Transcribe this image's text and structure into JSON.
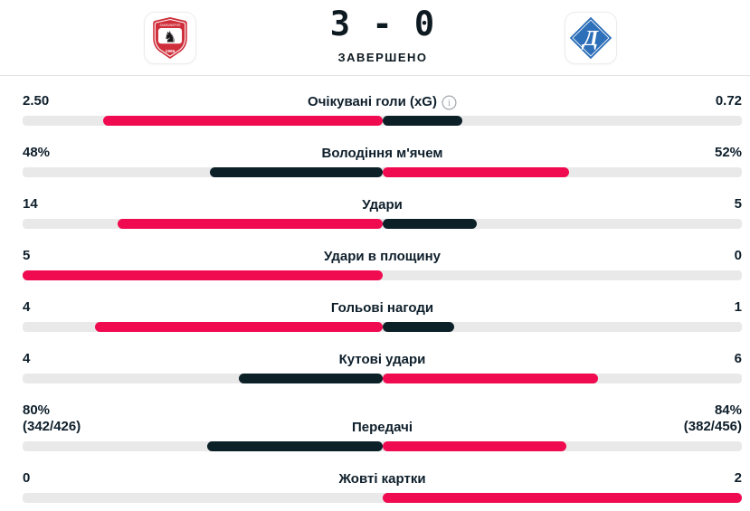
{
  "header": {
    "home_team": {
      "name": "Samsunspor",
      "crest_top_text": "SAMSUNSPOR",
      "crest_bottom_text": "1965"
    },
    "away_team": {
      "name": "Dynamo Kyiv",
      "crest_letter": "Д"
    },
    "score": "3 - 0",
    "status": "ЗАВЕРШЕНО"
  },
  "colors": {
    "accent": "#f00a50",
    "dark": "#0c2028",
    "track": "#e9e9e9"
  },
  "stats": [
    {
      "label": "Очікувані голи (xG)",
      "info": true,
      "home": "2.50",
      "away": "0.72",
      "home_num": 2.5,
      "away_num": 0.72
    },
    {
      "label": "Володіння м'ячем",
      "home": "48%",
      "away": "52%",
      "home_num": 48,
      "away_num": 52
    },
    {
      "label": "Удари",
      "home": "14",
      "away": "5",
      "home_num": 14,
      "away_num": 5
    },
    {
      "label": "Удари в площину",
      "home": "5",
      "away": "0",
      "home_num": 5,
      "away_num": 0
    },
    {
      "label": "Гольові нагоди",
      "home": "4",
      "away": "1",
      "home_num": 4,
      "away_num": 1
    },
    {
      "label": "Кутові удари",
      "home": "4",
      "away": "6",
      "home_num": 4,
      "away_num": 6
    },
    {
      "label": "Передачі",
      "home": "80%",
      "home_sub": "(342/426)",
      "away": "84%",
      "away_sub": "(382/456)",
      "home_num": 80,
      "away_num": 84
    },
    {
      "label": "Жовті картки",
      "home": "0",
      "away": "2",
      "home_num": 0,
      "away_num": 2
    }
  ]
}
